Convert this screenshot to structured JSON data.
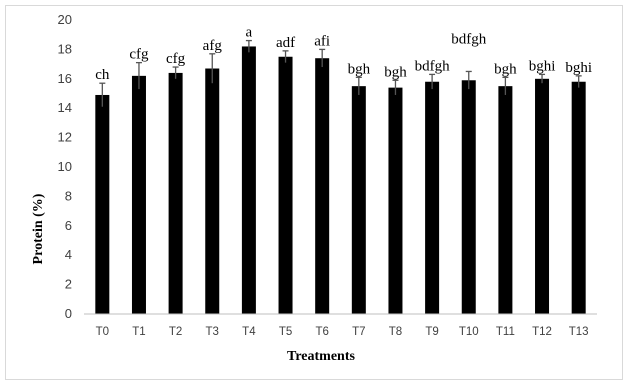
{
  "chart_data": {
    "type": "bar",
    "title": "",
    "xlabel": "Treatments",
    "ylabel": "Protein (%)",
    "ylim": [
      0,
      20
    ],
    "yticks": [
      0,
      2,
      4,
      6,
      8,
      10,
      12,
      14,
      16,
      18,
      20
    ],
    "grid": false,
    "legend": "none",
    "bar_color": "#000000",
    "categories": [
      "T0",
      "T1",
      "T2",
      "T3",
      "T4",
      "T5",
      "T6",
      "T7",
      "T8",
      "T9",
      "T10",
      "T11",
      "T12",
      "T13"
    ],
    "values": [
      14.9,
      16.2,
      16.4,
      16.7,
      18.2,
      17.5,
      17.4,
      15.5,
      15.4,
      15.8,
      15.9,
      15.5,
      16.0,
      15.8
    ],
    "errors": [
      0.8,
      0.9,
      0.4,
      1.0,
      0.4,
      0.4,
      0.6,
      0.6,
      0.5,
      0.5,
      0.6,
      0.6,
      0.3,
      0.4
    ],
    "annotations": [
      "ch",
      "cfg",
      "cfg",
      "afg",
      "a",
      "adf",
      "afi",
      "bgh",
      "bgh",
      "bdfgh",
      "bdfgh",
      "bgh",
      "bghi",
      "bghi"
    ]
  }
}
